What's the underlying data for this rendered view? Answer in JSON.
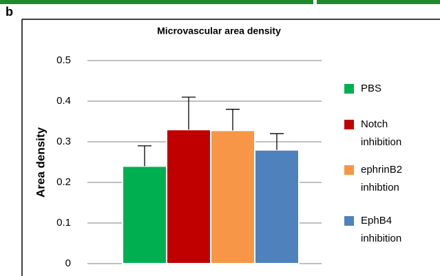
{
  "panel_label": "b",
  "chart_data": {
    "type": "bar",
    "title": "Microvascular area density",
    "ylabel": "Area density",
    "series": [
      {
        "name": "PBS",
        "color": "#00b050",
        "values": [
          0.24
        ],
        "errors": [
          0.05
        ]
      },
      {
        "name": "Notch inhibition",
        "color": "#c00000",
        "values": [
          0.33
        ],
        "errors": [
          0.08
        ]
      },
      {
        "name": "ephrinB2 inhibtion",
        "color": "#f79646",
        "values": [
          0.328
        ],
        "errors": [
          0.052
        ]
      },
      {
        "name": "EphB4 inhibition",
        "color": "#4f81bd",
        "values": [
          0.28
        ],
        "errors": [
          0.04
        ]
      }
    ],
    "ylim": [
      0,
      0.5
    ],
    "yticks": [
      0,
      0.1,
      0.2,
      0.3,
      0.4,
      0.5
    ],
    "grid": true,
    "legend": "right"
  }
}
